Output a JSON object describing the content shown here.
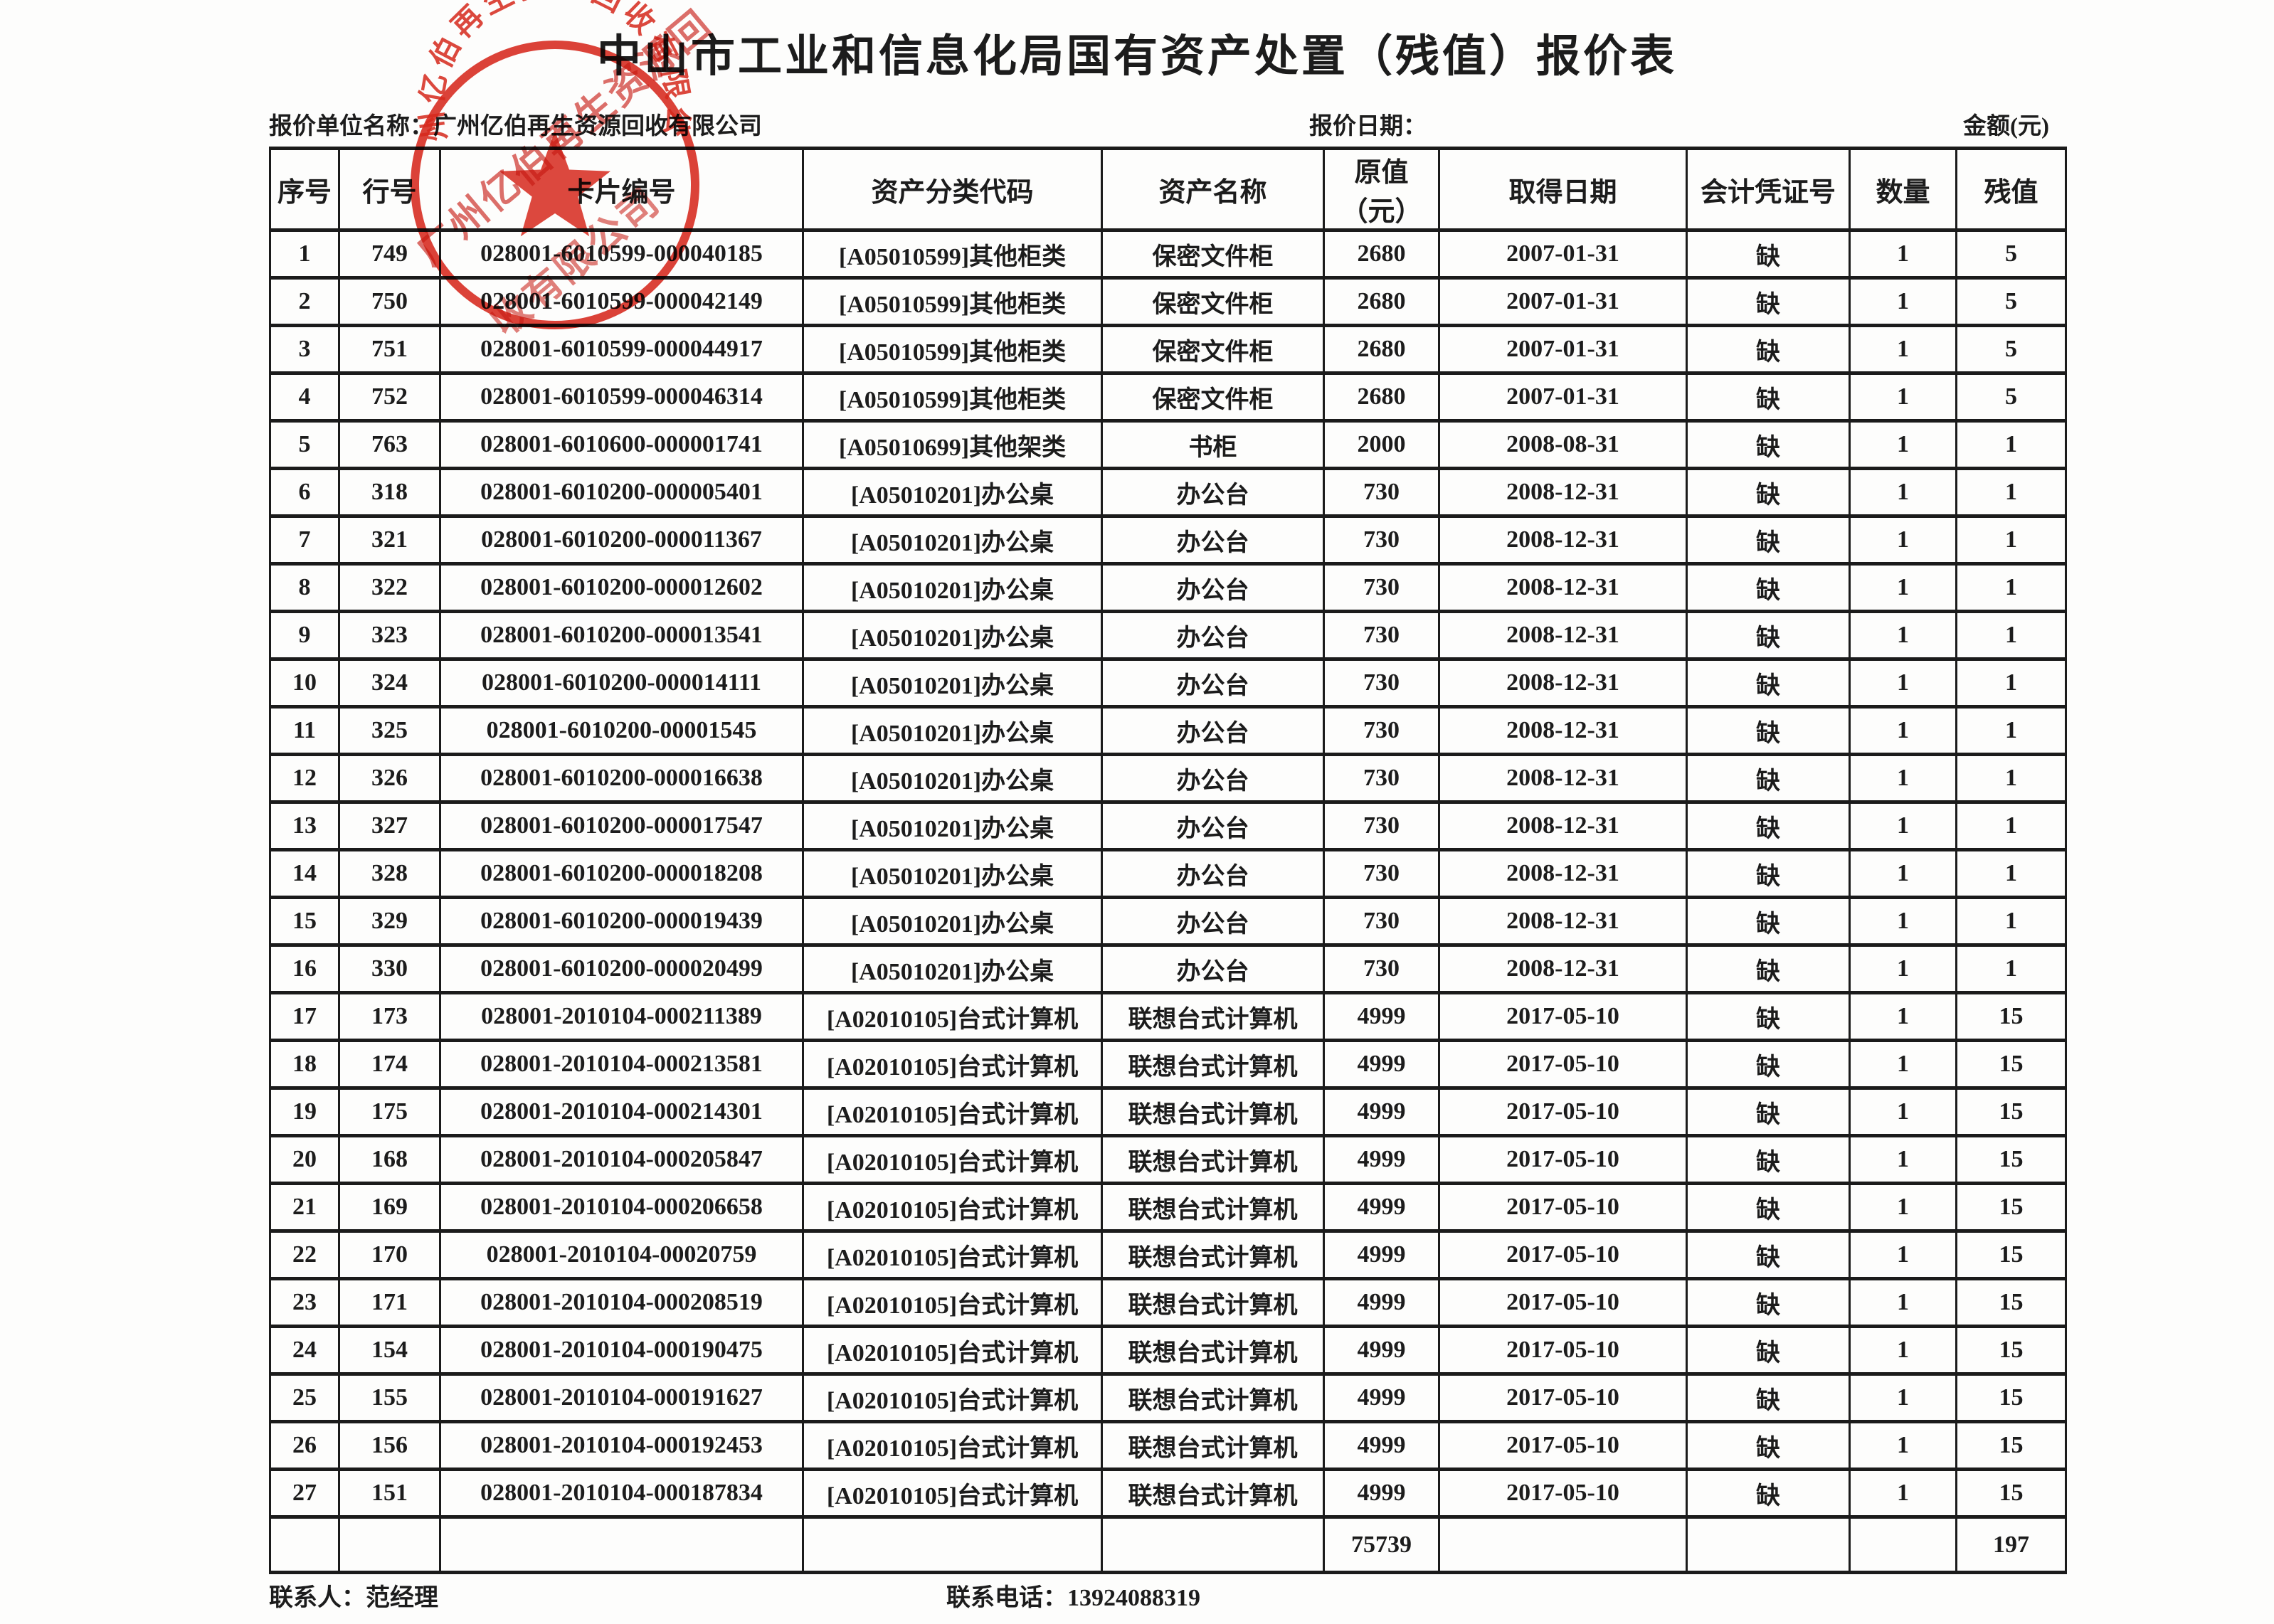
{
  "page": {
    "title": "中山市工业和信息化局国有资产处置（残值）报价表"
  },
  "meta": {
    "unit_label": "报价单位名称：",
    "unit_value": "广州亿伯再生资源回收有限公司",
    "date_label": "报价日期：",
    "amount_label": "金额(元)"
  },
  "table": {
    "columns": [
      "序号",
      "行号",
      "卡片编号",
      "资产分类代码",
      "资产名称",
      "原值\n（元）",
      "取得日期",
      "会计凭证号",
      "数量",
      "残值"
    ],
    "rows": [
      [
        "1",
        "749",
        "028001-6010599-000040185",
        "[A05010599]其他柜类",
        "保密文件柜",
        "2680",
        "2007-01-31",
        "缺",
        "1",
        "5"
      ],
      [
        "2",
        "750",
        "028001-6010599-000042149",
        "[A05010599]其他柜类",
        "保密文件柜",
        "2680",
        "2007-01-31",
        "缺",
        "1",
        "5"
      ],
      [
        "3",
        "751",
        "028001-6010599-000044917",
        "[A05010599]其他柜类",
        "保密文件柜",
        "2680",
        "2007-01-31",
        "缺",
        "1",
        "5"
      ],
      [
        "4",
        "752",
        "028001-6010599-000046314",
        "[A05010599]其他柜类",
        "保密文件柜",
        "2680",
        "2007-01-31",
        "缺",
        "1",
        "5"
      ],
      [
        "5",
        "763",
        "028001-6010600-000001741",
        "[A05010699]其他架类",
        "书柜",
        "2000",
        "2008-08-31",
        "缺",
        "1",
        "1"
      ],
      [
        "6",
        "318",
        "028001-6010200-000005401",
        "[A05010201]办公桌",
        "办公台",
        "730",
        "2008-12-31",
        "缺",
        "1",
        "1"
      ],
      [
        "7",
        "321",
        "028001-6010200-000011367",
        "[A05010201]办公桌",
        "办公台",
        "730",
        "2008-12-31",
        "缺",
        "1",
        "1"
      ],
      [
        "8",
        "322",
        "028001-6010200-000012602",
        "[A05010201]办公桌",
        "办公台",
        "730",
        "2008-12-31",
        "缺",
        "1",
        "1"
      ],
      [
        "9",
        "323",
        "028001-6010200-000013541",
        "[A05010201]办公桌",
        "办公台",
        "730",
        "2008-12-31",
        "缺",
        "1",
        "1"
      ],
      [
        "10",
        "324",
        "028001-6010200-000014111",
        "[A05010201]办公桌",
        "办公台",
        "730",
        "2008-12-31",
        "缺",
        "1",
        "1"
      ],
      [
        "11",
        "325",
        "028001-6010200-00001545",
        "[A05010201]办公桌",
        "办公台",
        "730",
        "2008-12-31",
        "缺",
        "1",
        "1"
      ],
      [
        "12",
        "326",
        "028001-6010200-000016638",
        "[A05010201]办公桌",
        "办公台",
        "730",
        "2008-12-31",
        "缺",
        "1",
        "1"
      ],
      [
        "13",
        "327",
        "028001-6010200-000017547",
        "[A05010201]办公桌",
        "办公台",
        "730",
        "2008-12-31",
        "缺",
        "1",
        "1"
      ],
      [
        "14",
        "328",
        "028001-6010200-000018208",
        "[A05010201]办公桌",
        "办公台",
        "730",
        "2008-12-31",
        "缺",
        "1",
        "1"
      ],
      [
        "15",
        "329",
        "028001-6010200-000019439",
        "[A05010201]办公桌",
        "办公台",
        "730",
        "2008-12-31",
        "缺",
        "1",
        "1"
      ],
      [
        "16",
        "330",
        "028001-6010200-000020499",
        "[A05010201]办公桌",
        "办公台",
        "730",
        "2008-12-31",
        "缺",
        "1",
        "1"
      ],
      [
        "17",
        "173",
        "028001-2010104-000211389",
        "[A02010105]台式计算机",
        "联想台式计算机",
        "4999",
        "2017-05-10",
        "缺",
        "1",
        "15"
      ],
      [
        "18",
        "174",
        "028001-2010104-000213581",
        "[A02010105]台式计算机",
        "联想台式计算机",
        "4999",
        "2017-05-10",
        "缺",
        "1",
        "15"
      ],
      [
        "19",
        "175",
        "028001-2010104-000214301",
        "[A02010105]台式计算机",
        "联想台式计算机",
        "4999",
        "2017-05-10",
        "缺",
        "1",
        "15"
      ],
      [
        "20",
        "168",
        "028001-2010104-000205847",
        "[A02010105]台式计算机",
        "联想台式计算机",
        "4999",
        "2017-05-10",
        "缺",
        "1",
        "15"
      ],
      [
        "21",
        "169",
        "028001-2010104-000206658",
        "[A02010105]台式计算机",
        "联想台式计算机",
        "4999",
        "2017-05-10",
        "缺",
        "1",
        "15"
      ],
      [
        "22",
        "170",
        "028001-2010104-00020759",
        "[A02010105]台式计算机",
        "联想台式计算机",
        "4999",
        "2017-05-10",
        "缺",
        "1",
        "15"
      ],
      [
        "23",
        "171",
        "028001-2010104-000208519",
        "[A02010105]台式计算机",
        "联想台式计算机",
        "4999",
        "2017-05-10",
        "缺",
        "1",
        "15"
      ],
      [
        "24",
        "154",
        "028001-2010104-000190475",
        "[A02010105]台式计算机",
        "联想台式计算机",
        "4999",
        "2017-05-10",
        "缺",
        "1",
        "15"
      ],
      [
        "25",
        "155",
        "028001-2010104-000191627",
        "[A02010105]台式计算机",
        "联想台式计算机",
        "4999",
        "2017-05-10",
        "缺",
        "1",
        "15"
      ],
      [
        "26",
        "156",
        "028001-2010104-000192453",
        "[A02010105]台式计算机",
        "联想台式计算机",
        "4999",
        "2017-05-10",
        "缺",
        "1",
        "15"
      ],
      [
        "27",
        "151",
        "028001-2010104-000187834",
        "[A02010105]台式计算机",
        "联想台式计算机",
        "4999",
        "2017-05-10",
        "缺",
        "1",
        "15"
      ]
    ],
    "totals": {
      "original_value": "75739",
      "residual_value": "197"
    }
  },
  "footer": {
    "contact_label": "联系人：",
    "contact_value": "范经理",
    "phone_label": "联系电话：",
    "phone_value": "13924088319"
  },
  "stamp": {
    "company": "广州亿伯再生资源回收有限公司",
    "overlay_line1": "广州亿伯再生资源回",
    "overlay_line2": "收有限公司",
    "color": "#d8281c"
  },
  "colors": {
    "ink": "#1c1c1c",
    "stamp_red": "#d8281c",
    "paper": "#fdfdfc"
  }
}
